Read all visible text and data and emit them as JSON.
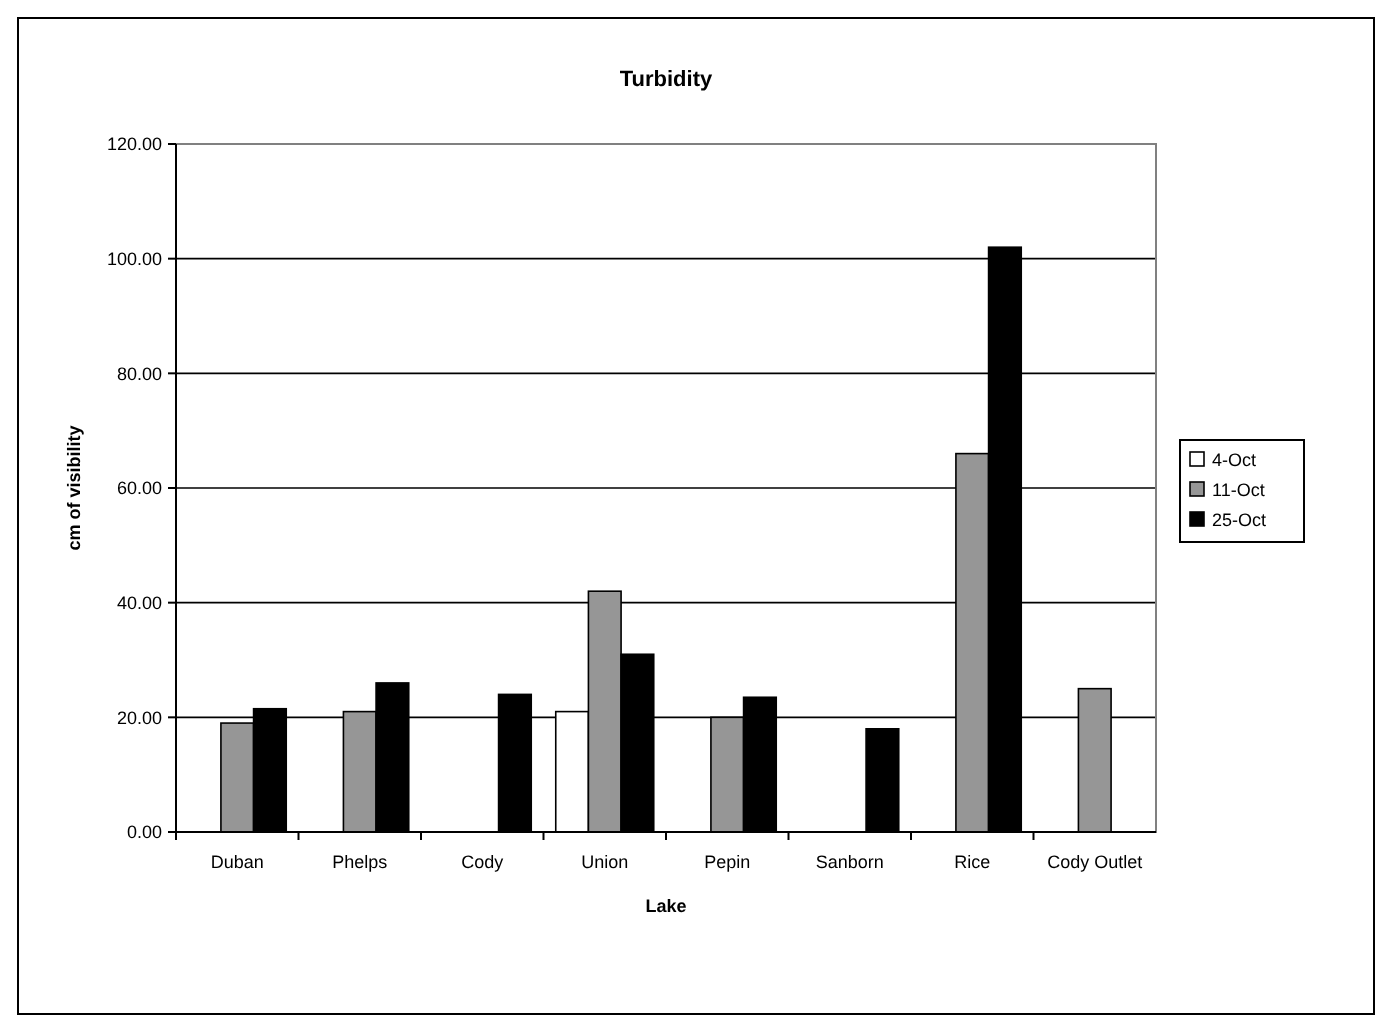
{
  "chart_data": {
    "type": "bar",
    "title": "Turbidity",
    "xlabel": "Lake",
    "ylabel": "cm of visibility",
    "categories": [
      "Duban",
      "Phelps",
      "Cody",
      "Union",
      "Pepin",
      "Sanborn",
      "Rice",
      "Cody Outlet"
    ],
    "series": [
      {
        "name": "4-Oct",
        "color": "#ffffff",
        "values": [
          null,
          null,
          null,
          21,
          null,
          null,
          null,
          null
        ]
      },
      {
        "name": "11-Oct",
        "color": "#969696",
        "values": [
          19,
          21,
          null,
          42,
          20,
          null,
          66,
          25
        ]
      },
      {
        "name": "25-Oct",
        "color": "#000000",
        "values": [
          21.5,
          26,
          24,
          31,
          23.5,
          18,
          102,
          null
        ]
      }
    ],
    "ylim": [
      0,
      120
    ],
    "yticks": [
      {
        "value": 0,
        "label": "0.00"
      },
      {
        "value": 20,
        "label": "20.00"
      },
      {
        "value": 40,
        "label": "40.00"
      },
      {
        "value": 60,
        "label": "60.00"
      },
      {
        "value": 80,
        "label": "80.00"
      },
      {
        "value": 100,
        "label": "100.00"
      },
      {
        "value": 120,
        "label": "120.00"
      }
    ],
    "grid": "y",
    "legend": "right"
  }
}
